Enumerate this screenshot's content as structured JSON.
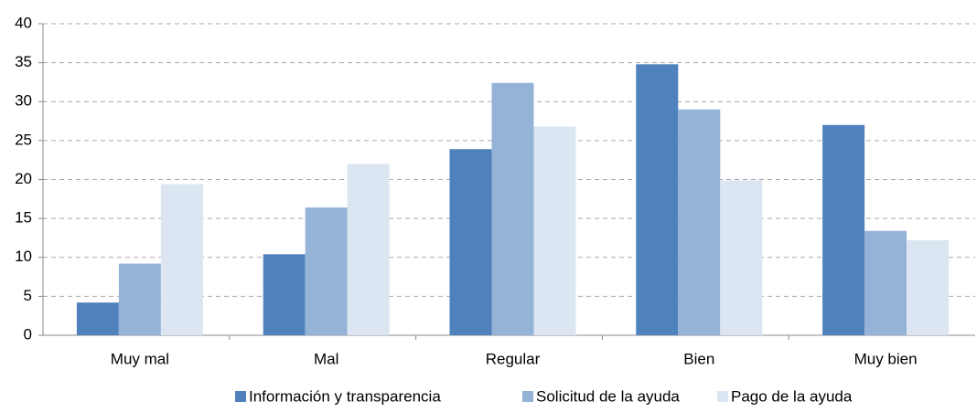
{
  "chart_data": {
    "type": "bar",
    "categories": [
      "Muy mal",
      "Mal",
      "Regular",
      "Bien",
      "Muy bien"
    ],
    "series": [
      {
        "name": "Información y transparencia",
        "color": "#4f81bd",
        "values": [
          4.2,
          10.4,
          23.9,
          34.8,
          27.0
        ]
      },
      {
        "name": "Solicitud de la ayuda",
        "color": "#95b3d7",
        "values": [
          9.2,
          16.4,
          32.4,
          29.0,
          13.4
        ]
      },
      {
        "name": "Pago de la ayuda",
        "color": "#dce6f2",
        "values": [
          19.4,
          22.0,
          26.8,
          19.9,
          12.2
        ]
      }
    ],
    "ylim": [
      0,
      40
    ],
    "yticks": [
      0,
      5,
      10,
      15,
      20,
      25,
      30,
      35,
      40
    ],
    "grid": true,
    "legend": "bottom"
  }
}
